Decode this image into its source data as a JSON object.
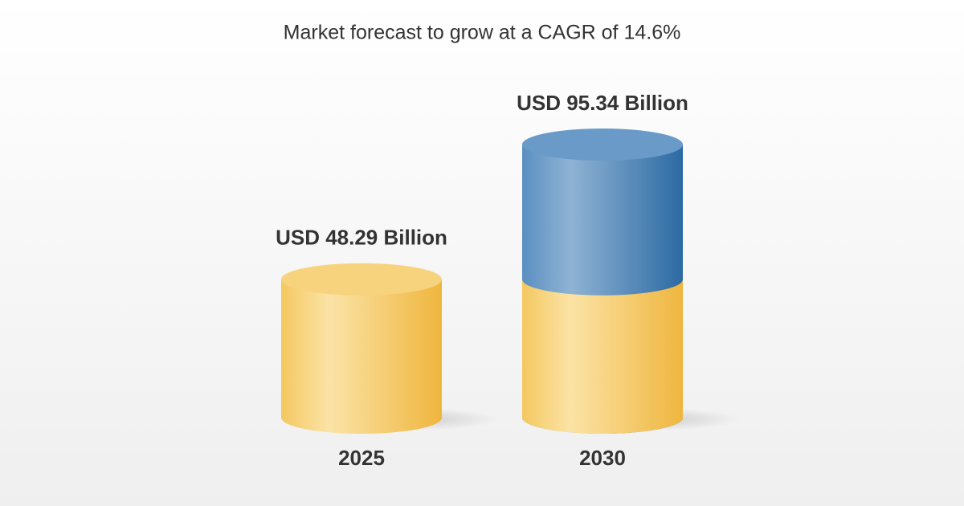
{
  "chart_data": {
    "type": "cylinder-bar",
    "subtitle": "Market forecast to grow at a CAGR of 14.6%",
    "categories": [
      "2025",
      "2030"
    ],
    "values": [
      48.29,
      95.34
    ],
    "value_labels": [
      "USD 48.29 Billion",
      "USD 95.34 Billion"
    ],
    "colors": [
      "#f3c45a",
      "#4f88ba"
    ]
  }
}
